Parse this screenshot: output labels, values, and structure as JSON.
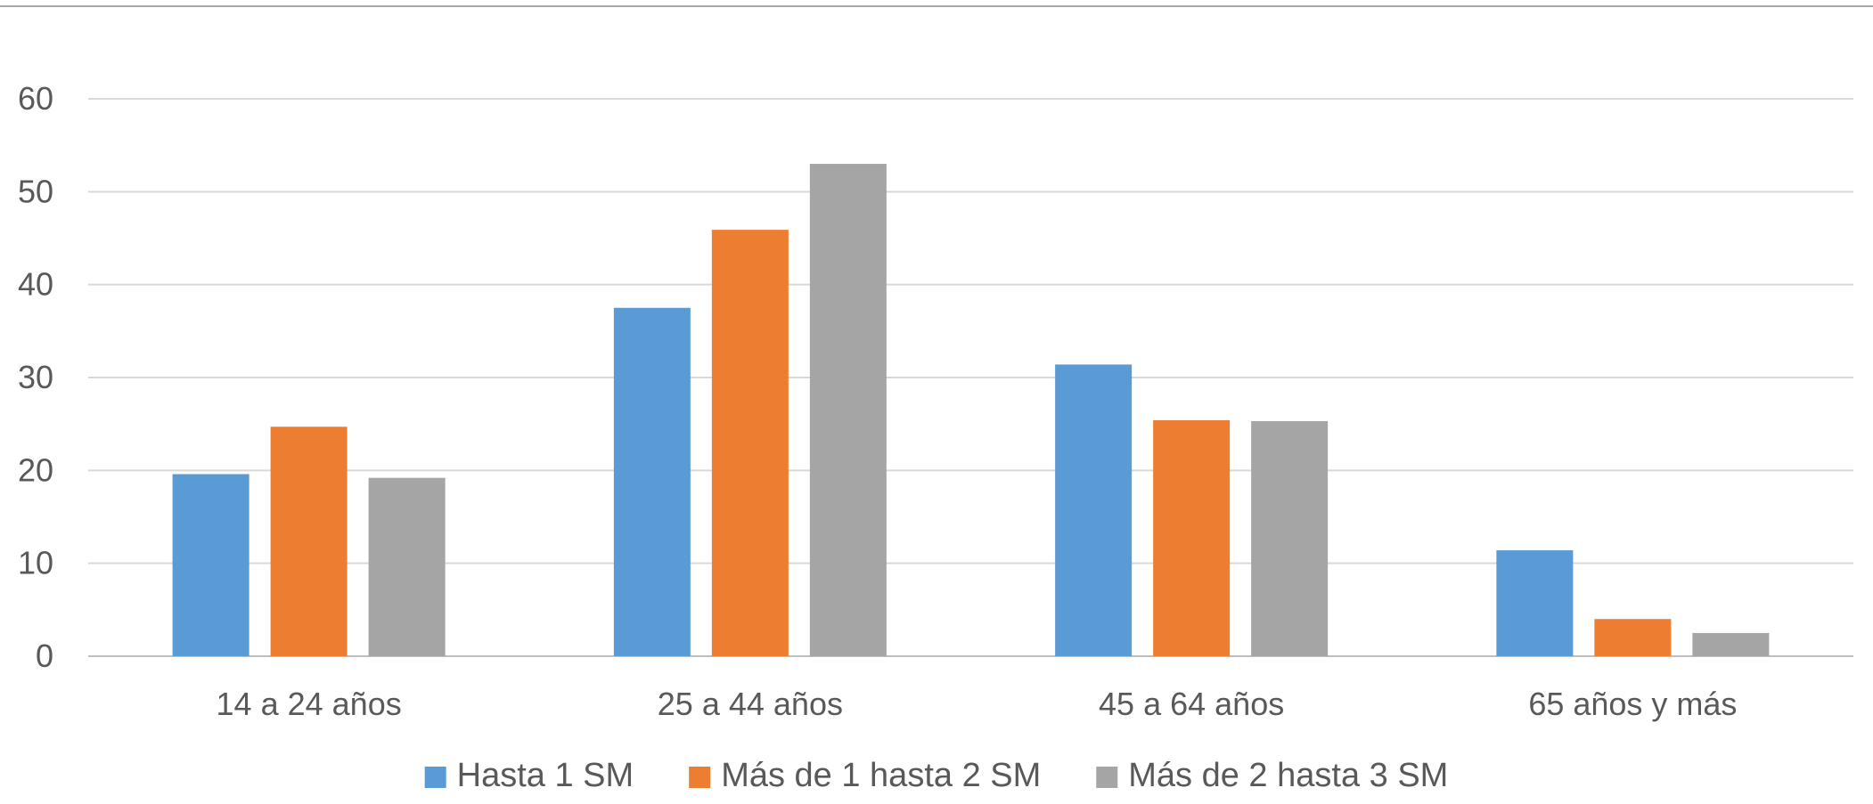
{
  "chart_data": {
    "type": "bar",
    "title": "",
    "xlabel": "",
    "ylabel": "",
    "categories": [
      "14 a 24 años",
      "25 a 44 años",
      "45 a 64 años",
      "65 años y más"
    ],
    "series": [
      {
        "name": "Hasta 1 SM",
        "values": [
          19.6,
          37.5,
          31.4,
          11.4
        ],
        "color": "#5B9BD5"
      },
      {
        "name": "Más de 1 hasta 2 SM",
        "values": [
          24.7,
          45.9,
          25.4,
          4.0
        ],
        "color": "#ED7D31"
      },
      {
        "name": "Más de 2 hasta 3 SM",
        "values": [
          19.2,
          53.0,
          25.3,
          2.5
        ],
        "color": "#A5A5A5"
      }
    ],
    "ylim": [
      0,
      60
    ],
    "yticks": [
      "0",
      "10",
      "20",
      "30",
      "40",
      "50",
      "60"
    ],
    "grid": true,
    "legend": "bottom-center",
    "colors": {
      "grid": "#D9D9D9",
      "axis": "#BFBFBF",
      "text": "#595959",
      "frame": "#A6A6A6"
    }
  }
}
